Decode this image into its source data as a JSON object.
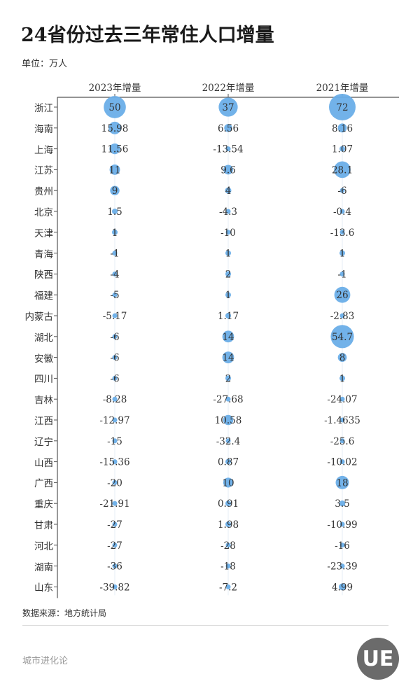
{
  "title": "24省份过去三年常住人口增量",
  "unit": "单位：万人",
  "source": "数据来源：地方统计局",
  "brand": "城市进化论",
  "logo_text": "UE",
  "colors": {
    "bubble": "#6aaee8",
    "axis": "#555555"
  },
  "chart_data": {
    "type": "bubble-table",
    "columns": [
      "2023年增量",
      "2022年增量",
      "2021年增量"
    ],
    "rows": [
      "浙江",
      "海南",
      "上海",
      "江苏",
      "贵州",
      "北京",
      "天津",
      "青海",
      "陕西",
      "福建",
      "内蒙古",
      "湖北",
      "安徽",
      "四川",
      "吉林",
      "江西",
      "辽宁",
      "山西",
      "广西",
      "重庆",
      "甘肃",
      "河北",
      "湖南",
      "山东"
    ],
    "values": [
      [
        "50",
        "37",
        "72"
      ],
      [
        "15.98",
        "6.56",
        "8.16"
      ],
      [
        "11.56",
        "-13.54",
        "1.07"
      ],
      [
        "11",
        "9.6",
        "28.1"
      ],
      [
        "9",
        "4",
        "-6"
      ],
      [
        "1.5",
        "-4.3",
        "-0.4"
      ],
      [
        "1",
        "-10",
        "-13.6"
      ],
      [
        "-1",
        "1",
        "1"
      ],
      [
        "-4",
        "2",
        "-1"
      ],
      [
        "-5",
        "1",
        "26"
      ],
      [
        "-5.17",
        "1.17",
        "-2.83"
      ],
      [
        "-6",
        "14",
        "54.7"
      ],
      [
        "-6",
        "14",
        "8"
      ],
      [
        "-6",
        "2",
        "1"
      ],
      [
        "-8.28",
        "-27.68",
        "-24.07"
      ],
      [
        "-12.97",
        "10.58",
        "-1.4635"
      ],
      [
        "-15",
        "-32.4",
        "-25.6"
      ],
      [
        "-15.36",
        "0.87",
        "-10.02"
      ],
      [
        "-20",
        "10",
        "18"
      ],
      [
        "-21.91",
        "0.91",
        "3.5"
      ],
      [
        "-27",
        "1.98",
        "-10.99"
      ],
      [
        "-27",
        "-28",
        "-16"
      ],
      [
        "-36",
        "-18",
        "-23.39"
      ],
      [
        "-39.82",
        "-7.2",
        "4.99"
      ]
    ]
  }
}
